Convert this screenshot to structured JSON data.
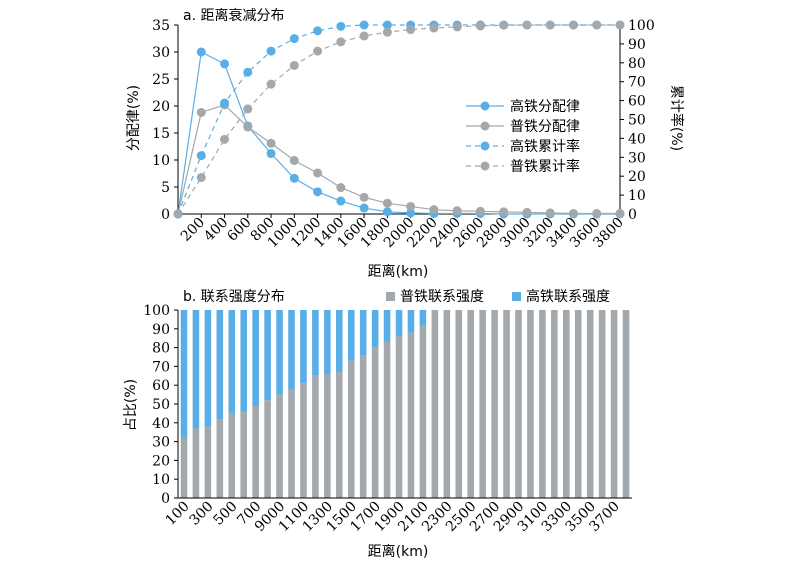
{
  "chart_data": [
    {
      "type": "line",
      "title": "a. 距离衰减分布",
      "xlabel": "距离(km)",
      "ylabel": "分配律(%)",
      "y2label": "累计率(%)",
      "x": [
        0,
        200,
        400,
        600,
        800,
        1000,
        1200,
        1400,
        1600,
        1800,
        2000,
        2200,
        2400,
        2600,
        2800,
        3000,
        3200,
        3400,
        3600,
        3800
      ],
      "xtick_labels": [
        "200",
        "400",
        "600",
        "800",
        "1000",
        "1200",
        "1400",
        "1600",
        "1800",
        "2000",
        "2200",
        "2400",
        "2600",
        "2800",
        "3000",
        "3200",
        "3400",
        "3600",
        "3800"
      ],
      "ylim": [
        0,
        35
      ],
      "yticks": [
        0,
        5,
        10,
        15,
        20,
        25,
        30,
        35
      ],
      "y2lim": [
        0,
        100
      ],
      "y2ticks": [
        0,
        10,
        20,
        30,
        40,
        50,
        60,
        70,
        80,
        90,
        100
      ],
      "legend_position": "center-right",
      "series": [
        {
          "name": "高铁分配律",
          "axis": "left",
          "style": "solid",
          "color": "#5aaee8",
          "values": [
            0,
            30,
            27.8,
            16.3,
            11.2,
            6.6,
            4.1,
            2.4,
            1.1,
            0.4,
            0.2,
            0.1,
            0.1,
            0.1,
            0,
            0,
            0,
            0,
            0,
            0
          ]
        },
        {
          "name": "普铁分配律",
          "axis": "left",
          "style": "solid",
          "color": "#a3a8ac",
          "values": [
            0,
            18.8,
            20.2,
            16.1,
            13.1,
            9.9,
            7.6,
            4.9,
            3.1,
            2.0,
            1.4,
            0.8,
            0.6,
            0.5,
            0.4,
            0.3,
            0.2,
            0.1,
            0.1,
            0.1
          ]
        },
        {
          "name": "高铁累计率",
          "axis": "right",
          "style": "dashed",
          "color": "#5aaee8",
          "values": [
            0,
            30.9,
            58.7,
            75,
            86.2,
            92.8,
            96.9,
            99.3,
            100,
            100,
            100,
            100,
            100,
            100,
            100,
            100,
            100,
            100,
            100,
            100
          ]
        },
        {
          "name": "普铁累计率",
          "axis": "right",
          "style": "dashed",
          "color": "#a3a8ac",
          "values": [
            0,
            19.3,
            39.5,
            55.6,
            68.7,
            78.6,
            86.2,
            91.1,
            94.2,
            96.2,
            97.6,
            98.4,
            99,
            99.5,
            99.9,
            100,
            100,
            100,
            100,
            100
          ]
        }
      ]
    },
    {
      "type": "bar",
      "stacked": true,
      "title": "b. 联系强度分布",
      "xlabel": "距离(km)",
      "ylabel": "占比(%)",
      "ylim": [
        0,
        100
      ],
      "yticks": [
        0,
        10,
        20,
        30,
        40,
        50,
        60,
        70,
        80,
        90,
        100
      ],
      "legend_position": "top-right",
      "categories": [
        "100",
        "200",
        "300",
        "400",
        "500",
        "600",
        "700",
        "800",
        "9000",
        "1000",
        "1100",
        "1200",
        "1300",
        "1400",
        "1500",
        "1600",
        "1700",
        "1800",
        "1900",
        "2000",
        "2100",
        "2200",
        "2300",
        "2400",
        "2500",
        "2600",
        "2700",
        "2800",
        "2900",
        "3000",
        "3100",
        "3200",
        "3300",
        "3400",
        "3500",
        "3600",
        "3700",
        "3800"
      ],
      "tick_labels": [
        "100",
        "300",
        "500",
        "700",
        "9000",
        "1100",
        "1300",
        "1500",
        "1700",
        "1900",
        "2100",
        "2300",
        "2500",
        "2700",
        "2900",
        "3100",
        "3300",
        "3500",
        "3700"
      ],
      "series": [
        {
          "name": "普铁联系强度",
          "color": "#a3a8ac",
          "values": [
            32,
            37,
            38,
            42,
            45,
            46,
            49,
            52,
            55,
            58,
            61,
            65,
            66,
            67,
            73,
            76,
            80,
            83,
            86,
            88,
            92,
            100,
            100,
            100,
            100,
            100,
            100,
            100,
            100,
            100,
            100,
            100,
            100,
            100,
            100,
            100,
            100,
            100
          ]
        },
        {
          "name": "高铁联系强度",
          "color": "#5aaee8",
          "values": [
            68,
            63,
            62,
            58,
            55,
            54,
            51,
            48,
            45,
            42,
            39,
            35,
            34,
            33,
            27,
            24,
            20,
            17,
            14,
            12,
            8,
            0,
            0,
            0,
            0,
            0,
            0,
            0,
            0,
            0,
            0,
            0,
            0,
            0,
            0,
            0,
            0,
            0
          ]
        }
      ]
    }
  ]
}
